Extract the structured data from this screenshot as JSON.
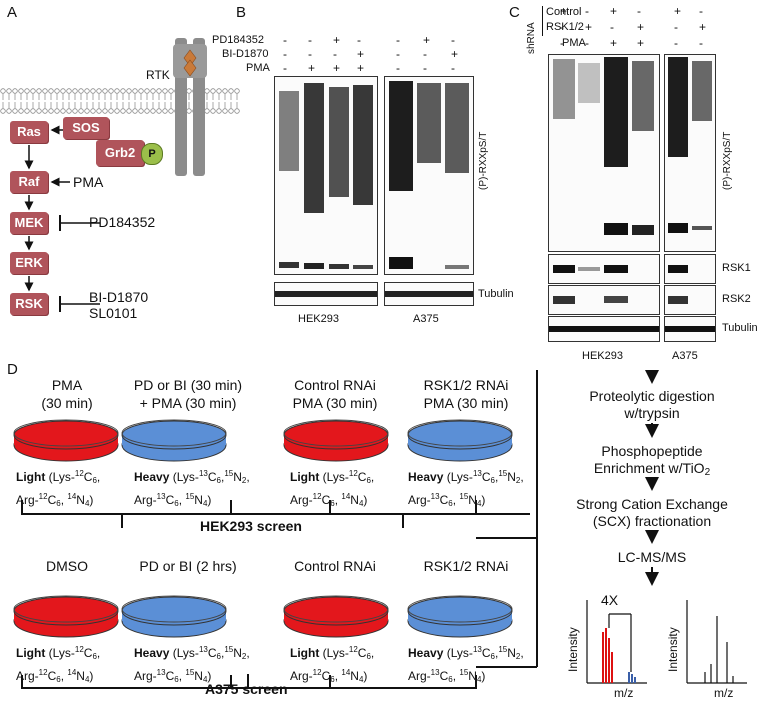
{
  "panelA": {
    "label": "A",
    "rtk": "RTK",
    "nodes": [
      "Ras",
      "Raf",
      "MEK",
      "ERK",
      "RSK"
    ],
    "sos": "SOS",
    "grb2": "Grb2",
    "phospho": "P",
    "pma": "PMA",
    "inhibitor_mek": "PD184352",
    "inhibitor_rsk_1": "BI-D1870",
    "inhibitor_rsk_2": "SL0101"
  },
  "panelB": {
    "label": "B",
    "row_labels": [
      "PD184352",
      "BI-D1870",
      "PMA"
    ],
    "hek_rows": [
      [
        "-",
        "-",
        "+",
        "-"
      ],
      [
        "-",
        "-",
        "-",
        "+"
      ],
      [
        "-",
        "+",
        "+",
        "+"
      ]
    ],
    "a375_rows": [
      [
        "-",
        "+",
        "-"
      ],
      [
        "-",
        "-",
        "+"
      ],
      [
        "-",
        "-",
        "-"
      ]
    ],
    "antibody": "(P)-RXXpS/T",
    "loading": "Tubulin",
    "cell_lines": [
      "HEK293",
      "A375"
    ]
  },
  "panelC": {
    "label": "C",
    "shrna": "shRNA",
    "row_labels": [
      "Control",
      "RSK1/2",
      "PMA"
    ],
    "hek_rows": [
      [
        "+",
        "-",
        "+",
        "-"
      ],
      [
        "-",
        "+",
        "-",
        "+"
      ],
      [
        "-",
        "-",
        "+",
        "+"
      ]
    ],
    "a375_rows": [
      [
        "+",
        "-"
      ],
      [
        "-",
        "+"
      ],
      [
        "-",
        "-"
      ]
    ],
    "antibody": "(P)-RXXpS/T",
    "blots": [
      "RSK1",
      "RSK2",
      "Tubulin"
    ],
    "cell_lines": [
      "HEK293",
      "A375"
    ]
  },
  "panelD": {
    "label": "D",
    "top_conditions": [
      {
        "title": [
          "PMA",
          "(30 min)"
        ],
        "label": "Light",
        "line1": [
          "(Lys-",
          "12",
          "C",
          "6",
          ","
        ],
        "line2": [
          "Arg-",
          "12",
          "C",
          "6",
          ", ",
          "14",
          "N",
          "4",
          ")"
        ],
        "color": "red"
      },
      {
        "title": [
          "PD or BI (30 min)",
          "+ PMA (30 min)"
        ],
        "label": "Heavy",
        "color": "blue"
      },
      {
        "title": [
          "Control RNAi",
          "PMA (30 min)"
        ],
        "label": "Light",
        "color": "red"
      },
      {
        "title": [
          "RSK1/2 RNAi",
          "PMA (30 min)"
        ],
        "label": "Heavy",
        "color": "blue"
      }
    ],
    "bottom_conditions": [
      {
        "title": [
          "DMSO"
        ],
        "label": "Light",
        "color": "red"
      },
      {
        "title": [
          "PD or BI (2 hrs)"
        ],
        "label": "Heavy",
        "color": "blue"
      },
      {
        "title": [
          "Control RNAi"
        ],
        "label": "Light",
        "color": "red"
      },
      {
        "title": [
          "RSK1/2 RNAi"
        ],
        "label": "Heavy",
        "color": "blue"
      }
    ],
    "screen_top": "HEK293 screen",
    "screen_bottom": "A375 screen",
    "steps": [
      "Proteolytic digestion",
      "w/trypsin",
      "Phosphopeptide",
      "Enrichment w/TiO",
      "Strong Cation Exchange",
      "(SCX) fractionation",
      "LC-MS/MS"
    ],
    "tio2_sub": "2",
    "ms_fold": "4X",
    "ms_ylabel": "Intensity",
    "ms_xlabel": "m/z"
  },
  "colors": {
    "kinase": "#b0545b",
    "light_dish": "#e3171c",
    "heavy_dish": "#5b8fd6",
    "grb2_p": "#9bbf4a"
  }
}
